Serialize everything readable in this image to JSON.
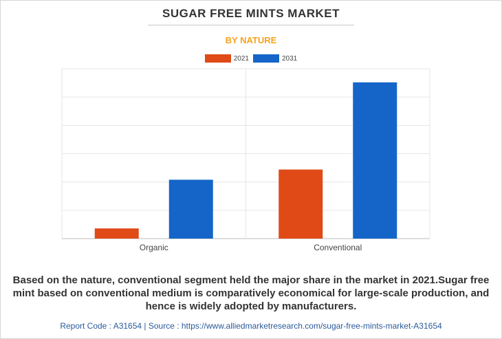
{
  "header": {
    "title": "SUGAR FREE MINTS MARKET",
    "subtitle": "BY NATURE"
  },
  "legend": {
    "series_2021_label": "2021",
    "series_2031_label": "2031"
  },
  "caption": "Based on the nature, conventional segment held the major share in the market in 2021.Sugar free mint based on conventional medium is comparatively economical for large-scale production, and hence is widely adopted by manufacturers.",
  "footer": "Report Code : A31654  |  Source : https://www.alliedmarketresearch.com/sugar-free-mints-market-A31654",
  "colors": {
    "series_2021": "#e04a16",
    "series_2031": "#1565c8",
    "subtitle": "#f4a21c"
  },
  "chart_data": {
    "type": "bar",
    "title": "SUGAR FREE MINTS MARKET",
    "subtitle": "BY NATURE",
    "categories": [
      "Organic",
      "Conventional"
    ],
    "series": [
      {
        "name": "2021",
        "values": [
          0.9,
          6.1
        ]
      },
      {
        "name": "2031",
        "values": [
          5.2,
          13.8
        ]
      }
    ],
    "ylim": [
      0,
      15
    ],
    "grid": true,
    "legend_position": "top-center",
    "y_tick_labels_shown": false
  }
}
